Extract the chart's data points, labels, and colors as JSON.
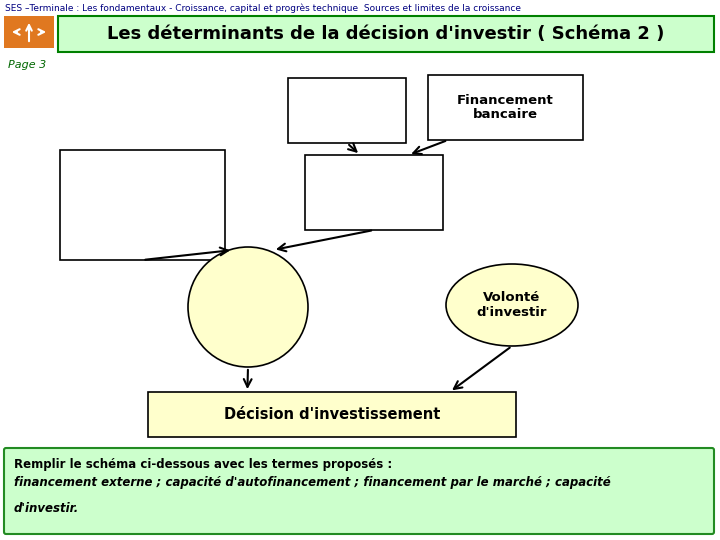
{
  "header_text": "SES –Terminale : Les fondamentaux - Croissance, capital et progrès technique  Sources et limites de la croissance",
  "title": "Les déterminants de la décision d'investir ( Schéma 2 )",
  "page_label": "Page 3",
  "nav_color": "#e07820",
  "header_bg": "#ffffff",
  "title_bg": "#ccffcc",
  "title_border": "#008000",
  "body_bg": "#ffffff",
  "box_white_fill": "#ffffff",
  "box_white_border": "#000000",
  "box_yellow_fill": "#ffffcc",
  "box_yellow_border": "#000000",
  "ellipse_yellow_fill": "#ffffcc",
  "ellipse_yellow_border": "#000000",
  "note_bg": "#ccffcc",
  "note_border": "#228B22",
  "note_text_bold": "Remplir le schéma ci-dessous avec les termes proposés :",
  "note_text_italic1": "financement externe ; capacité d'autofinancement ; financement par le marché ; capacité",
  "note_text_italic2": "d'investir.",
  "labeled_box_text": "Financement\nbancaire",
  "ellipse_right_text": "Volonté\nd'investir",
  "bottom_box_text": "Décision d'investissement",
  "arrow_color": "#000000",
  "header_text_color": "#000080",
  "page_label_color": "#006600",
  "title_text_color": "#000000"
}
